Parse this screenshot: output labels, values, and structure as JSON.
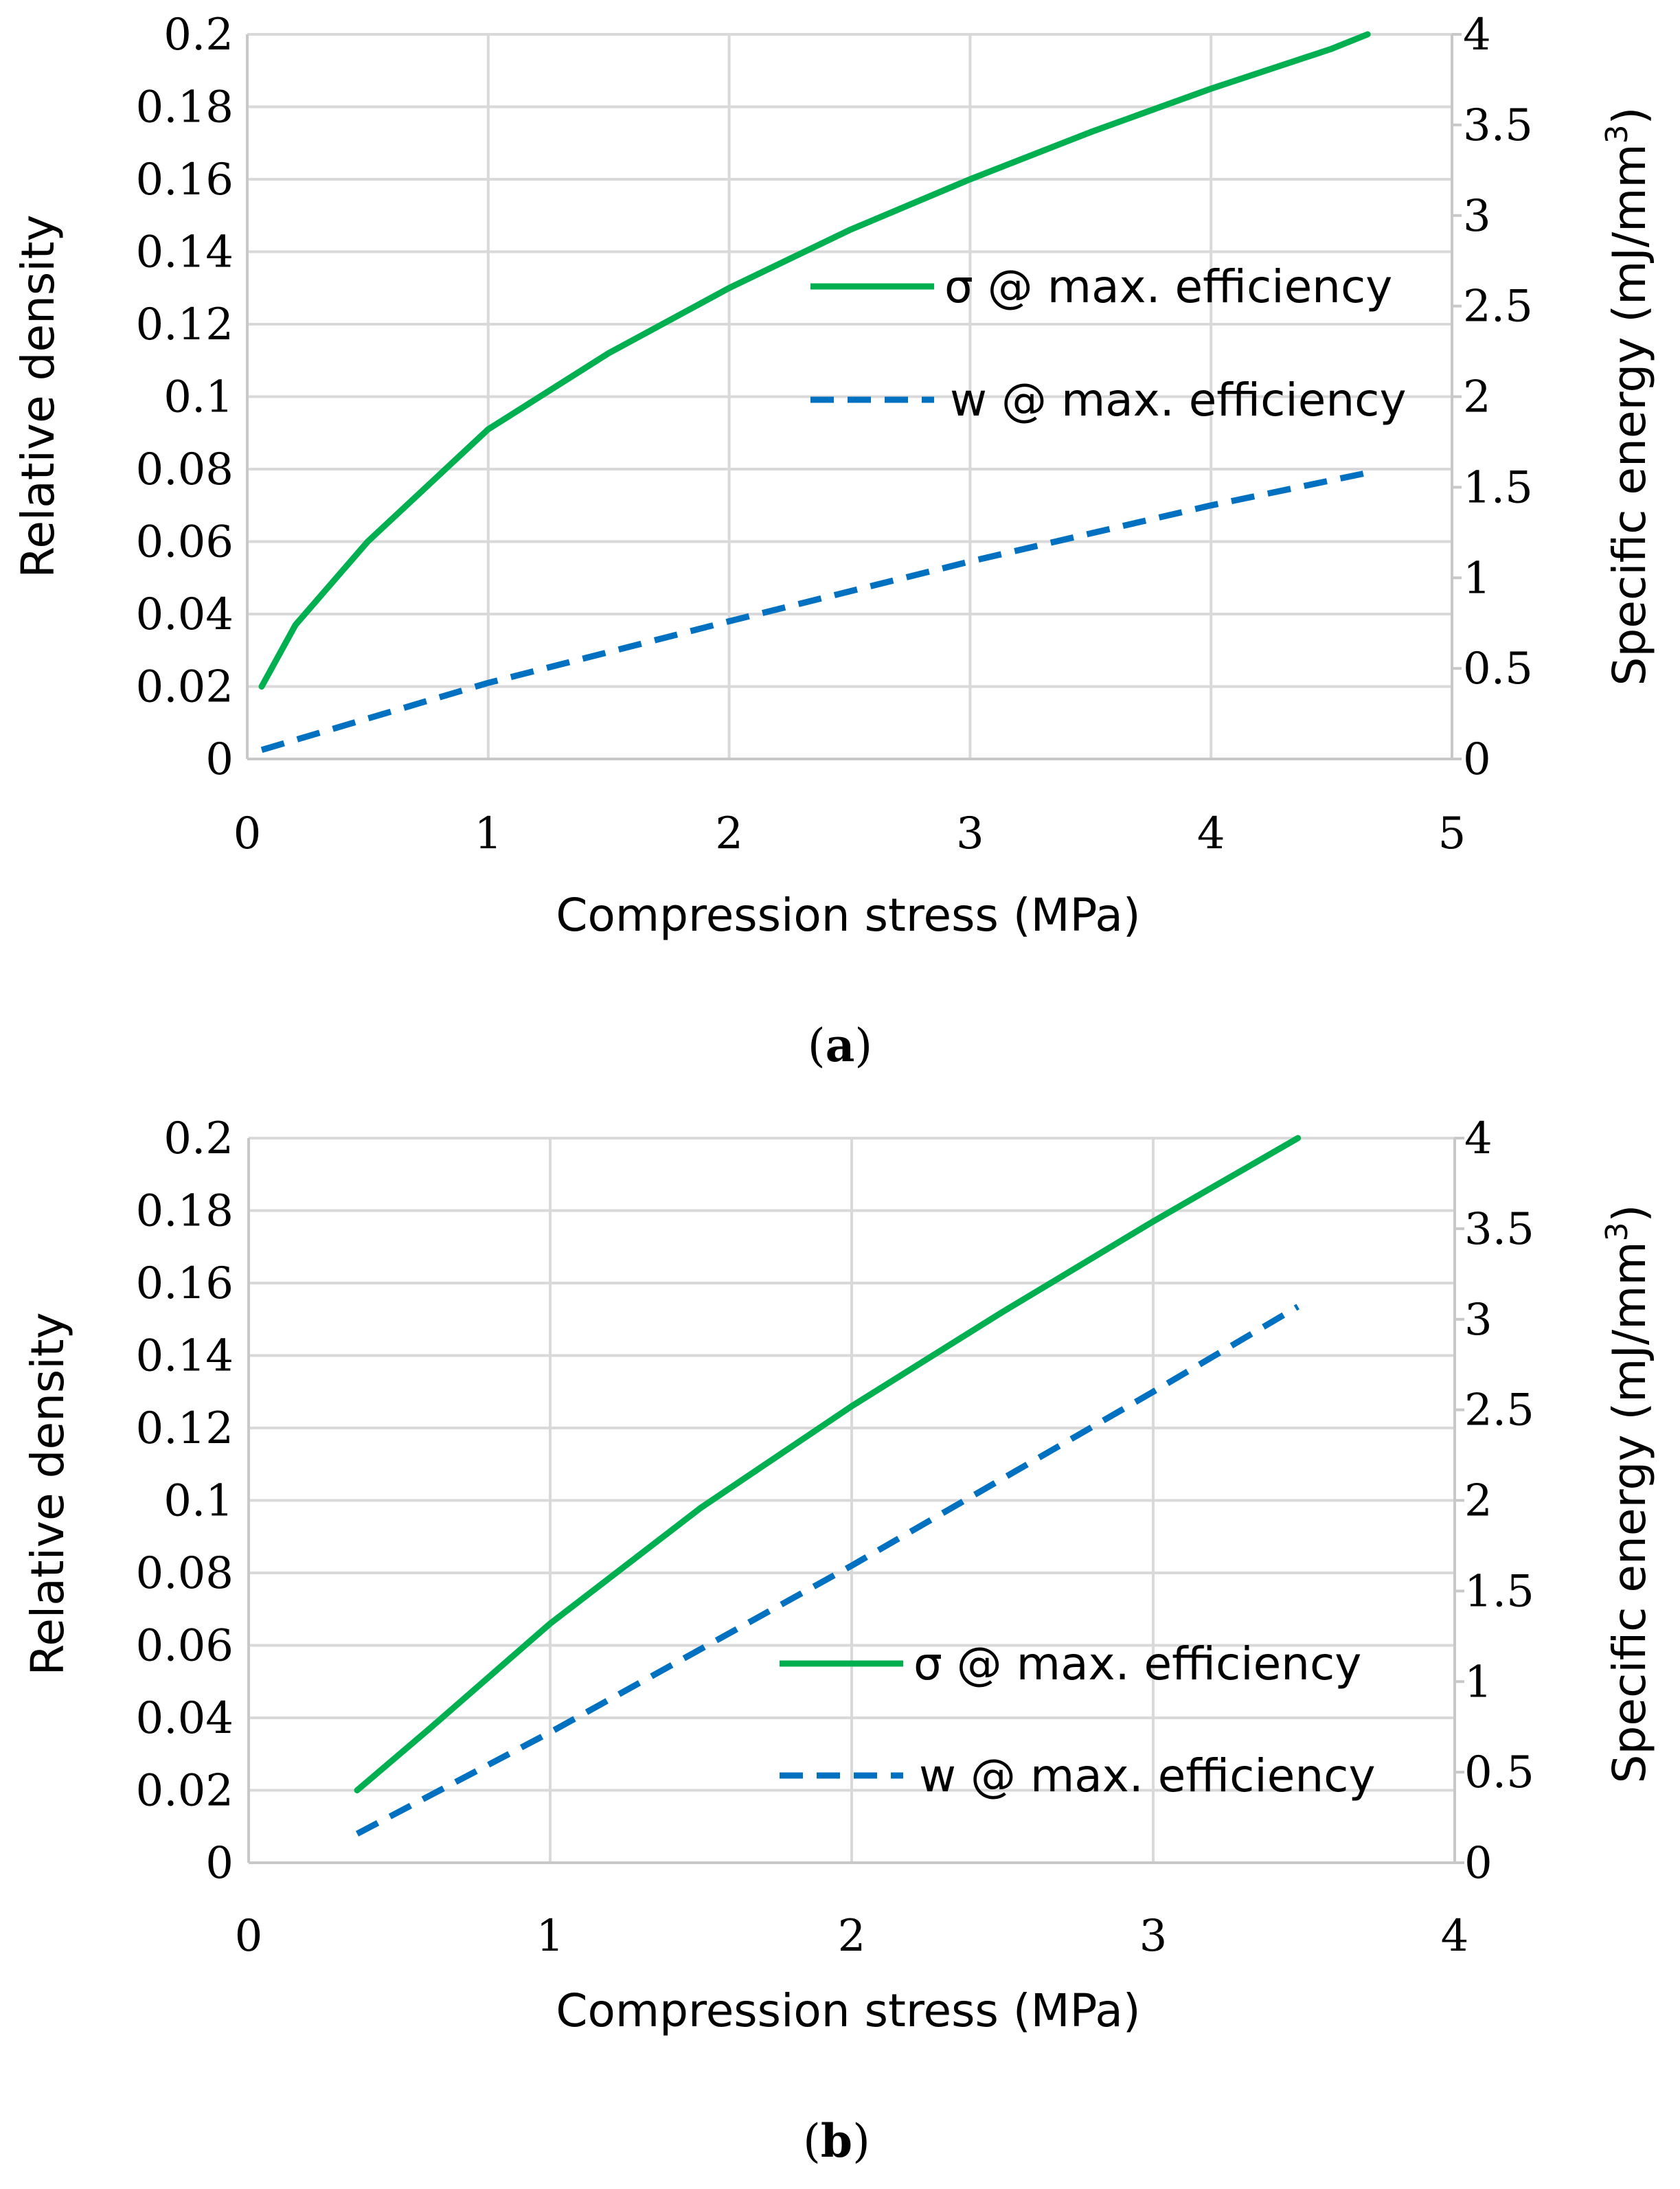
{
  "colors": {
    "sigma_series": "#00b050",
    "w_series": "#0070c0",
    "grid": "#d9d9d9"
  },
  "chart_data": [
    {
      "type": "line",
      "caption_label": "a",
      "xlabel": "Compression stress (MPa)",
      "ylabel": "Relative density",
      "y2label": "Specific energy (mJ/mm",
      "y2label_sup": "3",
      "y2label_end": ")",
      "xlim": [
        0,
        5
      ],
      "ylim": [
        0,
        0.2
      ],
      "y2lim": [
        0,
        4
      ],
      "x_ticks": [
        "0",
        "1",
        "2",
        "3",
        "4",
        "5"
      ],
      "y_ticks": [
        "0",
        "0.02",
        "0.04",
        "0.06",
        "0.08",
        "0.1",
        "0.12",
        "0.14",
        "0.16",
        "0.18",
        "0.2"
      ],
      "y2_ticks": [
        "0",
        "0.5",
        "1",
        "1.5",
        "2",
        "2.5",
        "3",
        "3.5",
        "4"
      ],
      "series": [
        {
          "name": "σ @ max. efficiency",
          "axis": "left",
          "style": "solid",
          "points": [
            [
              0.06,
              0.02
            ],
            [
              0.2,
              0.037
            ],
            [
              0.5,
              0.06
            ],
            [
              1.0,
              0.091
            ],
            [
              1.5,
              0.112
            ],
            [
              2.0,
              0.13
            ],
            [
              2.5,
              0.146
            ],
            [
              3.0,
              0.16
            ],
            [
              3.5,
              0.173
            ],
            [
              4.0,
              0.185
            ],
            [
              4.5,
              0.196
            ],
            [
              4.65,
              0.2
            ]
          ]
        },
        {
          "name": "w @ max. efficiency",
          "axis": "right",
          "style": "dashed",
          "points": [
            [
              0.06,
              0.05
            ],
            [
              1.0,
              0.42
            ],
            [
              2.0,
              0.76
            ],
            [
              3.0,
              1.09
            ],
            [
              4.0,
              1.4
            ],
            [
              4.65,
              1.58
            ]
          ]
        }
      ]
    },
    {
      "type": "line",
      "caption_label": "b",
      "xlabel": "Compression stress (MPa)",
      "ylabel": "Relative density",
      "y2label": "Specific energy (mJ/mm",
      "y2label_sup": "3",
      "y2label_end": ")",
      "xlim": [
        0,
        4
      ],
      "ylim": [
        0,
        0.2
      ],
      "y2lim": [
        0,
        4
      ],
      "x_ticks": [
        "0",
        "1",
        "2",
        "3",
        "4"
      ],
      "y_ticks": [
        "0",
        "0.02",
        "0.04",
        "0.06",
        "0.08",
        "0.1",
        "0.12",
        "0.14",
        "0.16",
        "0.18",
        "0.2"
      ],
      "y2_ticks": [
        "0",
        "0.5",
        "1",
        "1.5",
        "2",
        "2.5",
        "3",
        "3.5",
        "4"
      ],
      "series": [
        {
          "name": "σ @ max. efficiency",
          "axis": "left",
          "style": "solid",
          "points": [
            [
              0.36,
              0.02
            ],
            [
              0.6,
              0.037
            ],
            [
              1.0,
              0.066
            ],
            [
              1.5,
              0.098
            ],
            [
              2.0,
              0.126
            ],
            [
              2.5,
              0.152
            ],
            [
              3.0,
              0.177
            ],
            [
              3.48,
              0.2
            ]
          ]
        },
        {
          "name": "w @ max. efficiency",
          "axis": "right",
          "style": "dashed",
          "points": [
            [
              0.36,
              0.16
            ],
            [
              1.0,
              0.72
            ],
            [
              2.0,
              1.64
            ],
            [
              3.0,
              2.6
            ],
            [
              3.48,
              3.07
            ]
          ]
        }
      ]
    }
  ]
}
